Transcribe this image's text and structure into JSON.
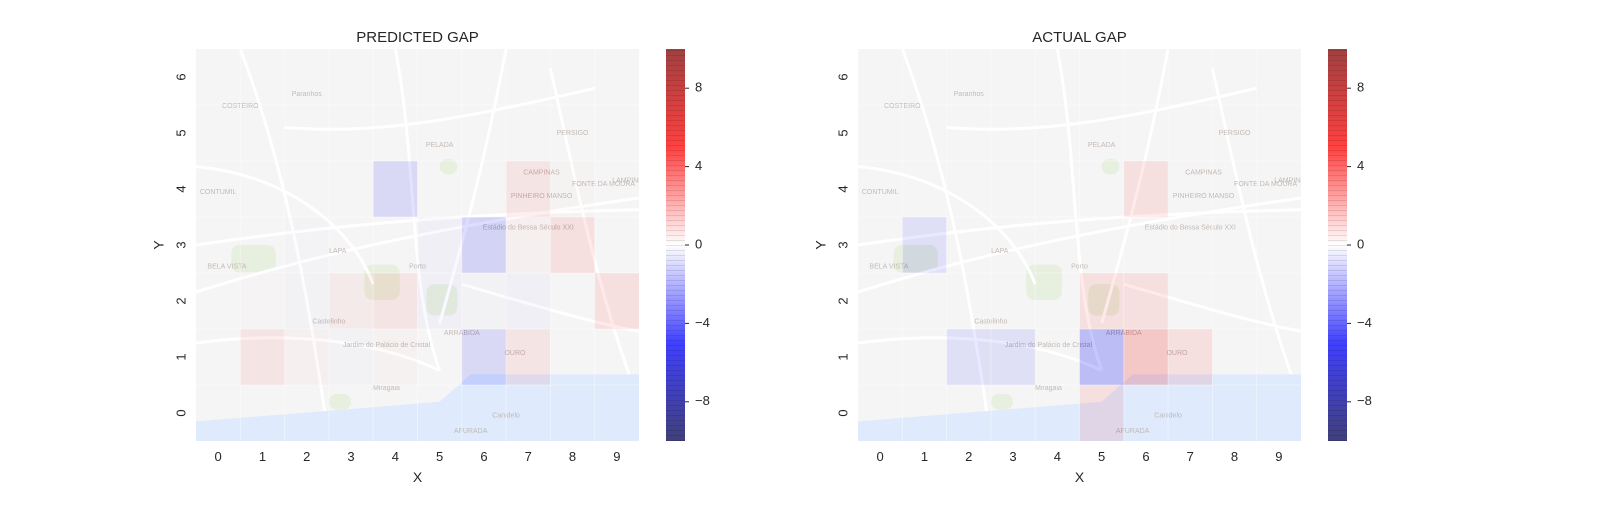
{
  "colors": {
    "map_background": "#f2f2f2",
    "map_water": "#d6e6fb",
    "map_roads": "#ffffff",
    "map_green": "#dbe8cf",
    "colormap": "seismic",
    "map_labels": "#a89a92"
  },
  "map_labels": [
    "Paranhos",
    "COSTEIRO",
    "PELADA",
    "PERSIGO",
    "CAMPINAS",
    "PINHEIRO MANSO",
    "FONTE DA MOURA",
    "LAMPINHA",
    "CONTUMIL",
    "LAPA",
    "Estádio do Bessa Século XXI",
    "Porto",
    "BELA VISTA",
    "Jardim do Palácio de Cristal",
    "Castelinho",
    "ARRÁBIDA",
    "OURO",
    "Miragaia",
    "Canidelo",
    "AFURADA"
  ],
  "chart_data": [
    {
      "type": "heatmap",
      "title": "PREDICTED GAP",
      "xlabel": "X",
      "ylabel": "Y",
      "x": [
        0,
        1,
        2,
        3,
        4,
        5,
        6,
        7,
        8,
        9
      ],
      "y": [
        0,
        1,
        2,
        3,
        4,
        5,
        6
      ],
      "xlim": [
        -0.5,
        9.5
      ],
      "ylim": [
        -0.5,
        6.5
      ],
      "xticks": [
        "0",
        "1",
        "2",
        "3",
        "4",
        "5",
        "6",
        "7",
        "8",
        "9"
      ],
      "yticks": [
        "0",
        "1",
        "2",
        "3",
        "4",
        "5",
        "6"
      ],
      "colorbar": {
        "vmin": -10,
        "vmax": 10,
        "ticks": [
          8,
          4,
          0,
          -4,
          -8
        ],
        "tick_labels": [
          "8",
          "4",
          "0",
          "−4",
          "−8"
        ]
      },
      "grid": true,
      "z": [
        [
          0,
          0,
          0,
          0,
          0,
          0,
          0,
          0,
          0,
          0
        ],
        [
          0,
          1.5,
          0.5,
          -0.3,
          0.4,
          0,
          -2.5,
          1.5,
          0,
          0
        ],
        [
          0,
          0.2,
          -0.3,
          1,
          1.5,
          -0.5,
          -0.3,
          -0.5,
          0,
          2
        ],
        [
          0,
          0,
          -0.2,
          0,
          0,
          -0.5,
          -3,
          0.5,
          2,
          0
        ],
        [
          0,
          0,
          0,
          0,
          -2.5,
          0,
          0,
          1.5,
          0.3,
          0
        ],
        [
          0,
          0,
          0,
          0,
          0,
          0,
          0,
          0,
          0,
          0
        ],
        [
          0,
          0,
          0,
          0,
          0,
          0,
          0,
          0,
          0,
          0
        ]
      ]
    },
    {
      "type": "heatmap",
      "title": "ACTUAL GAP",
      "xlabel": "X",
      "ylabel": "Y",
      "x": [
        0,
        1,
        2,
        3,
        4,
        5,
        6,
        7,
        8,
        9
      ],
      "y": [
        0,
        1,
        2,
        3,
        4,
        5,
        6
      ],
      "xlim": [
        -0.5,
        9.5
      ],
      "ylim": [
        -0.5,
        6.5
      ],
      "xticks": [
        "0",
        "1",
        "2",
        "3",
        "4",
        "5",
        "6",
        "7",
        "8",
        "9"
      ],
      "yticks": [
        "0",
        "1",
        "2",
        "3",
        "4",
        "5",
        "6"
      ],
      "colorbar": {
        "vmin": -10,
        "vmax": 10,
        "ticks": [
          8,
          4,
          0,
          -4,
          -8
        ],
        "tick_labels": [
          "8",
          "4",
          "0",
          "−4",
          "−8"
        ]
      },
      "grid": true,
      "z": [
        [
          0,
          0,
          0,
          0,
          0,
          2,
          0,
          0,
          0,
          0
        ],
        [
          0,
          0,
          -2,
          -2,
          0,
          -5,
          4,
          2,
          0,
          0
        ],
        [
          0,
          0,
          0,
          0,
          0,
          2,
          2,
          0,
          0,
          0
        ],
        [
          0,
          -2,
          0,
          0,
          0,
          0,
          0,
          0,
          0,
          0
        ],
        [
          0,
          0,
          0,
          0,
          0,
          0,
          2,
          0,
          0,
          0
        ],
        [
          0,
          0,
          0,
          0,
          0,
          0,
          0,
          0,
          0,
          0
        ],
        [
          0,
          0,
          0,
          0,
          0,
          0,
          0,
          0,
          0,
          0
        ]
      ]
    }
  ]
}
